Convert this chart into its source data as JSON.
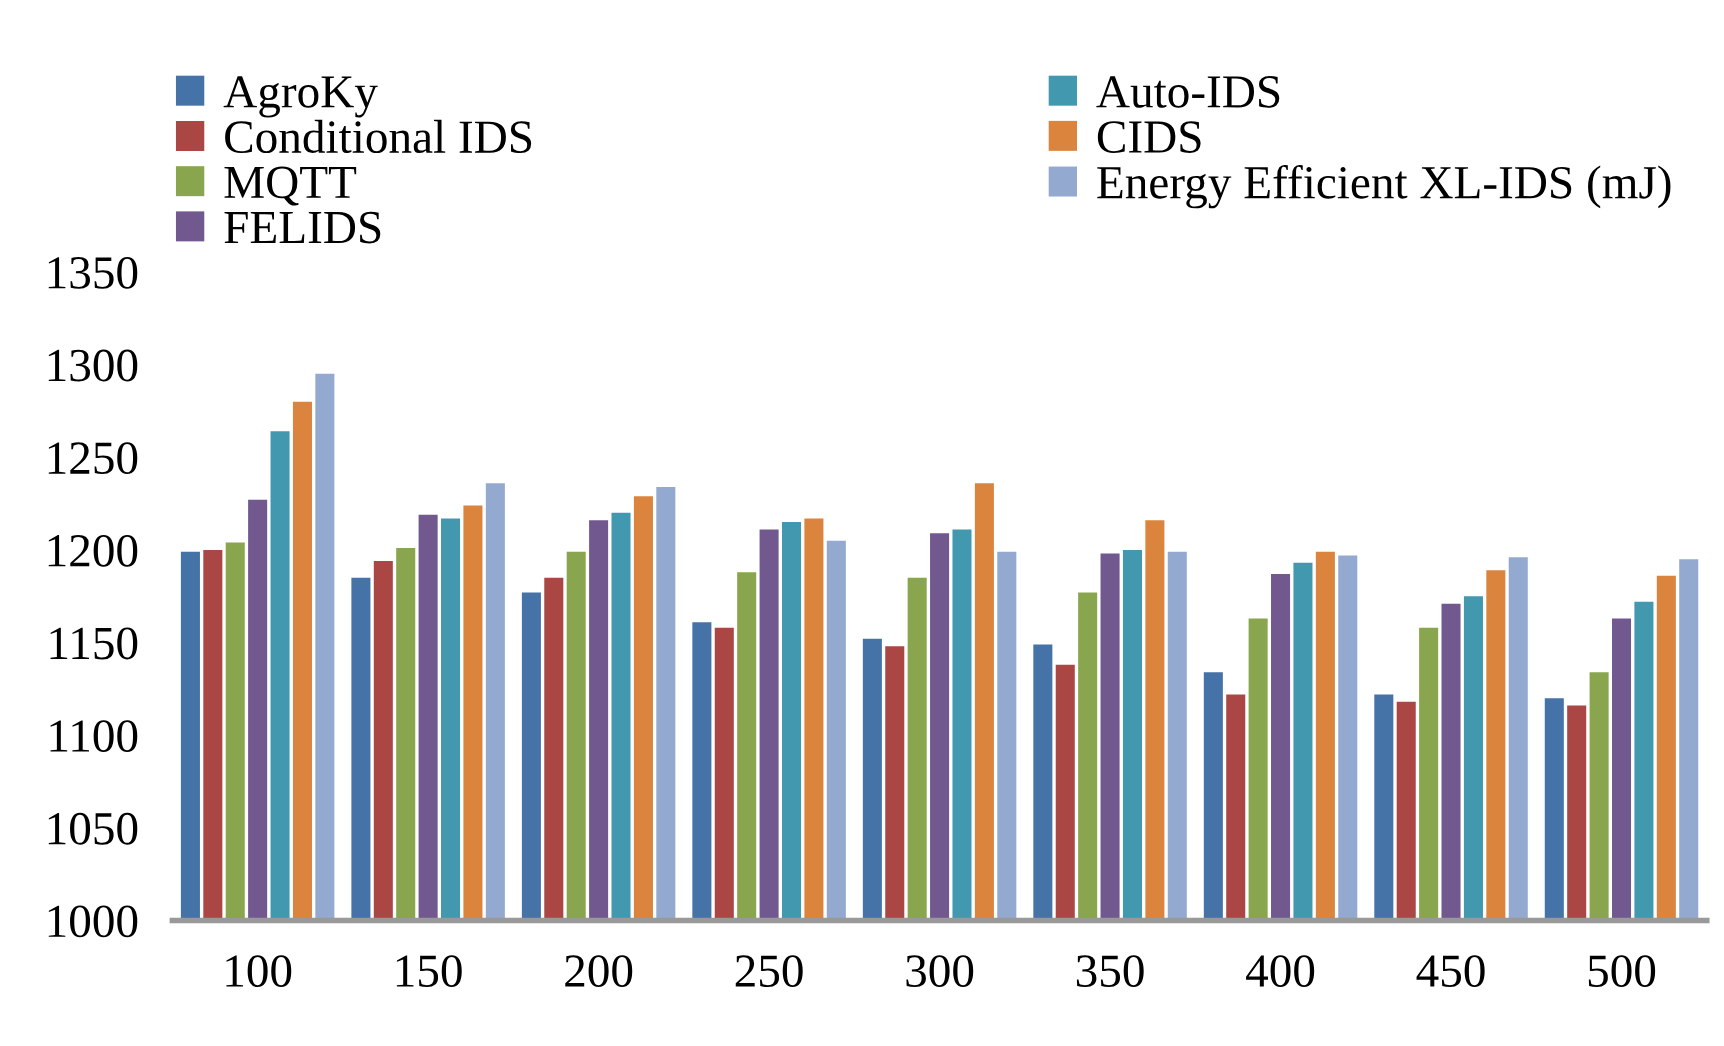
{
  "chart_data": {
    "type": "bar",
    "categories": [
      "100",
      "150",
      "200",
      "250",
      "300",
      "350",
      "400",
      "450",
      "500"
    ],
    "series": [
      {
        "name": "AgroKy",
        "color": "#4572a7",
        "values": [
          1199,
          1185,
          1177,
          1161,
          1152,
          1149,
          1134,
          1122,
          1120
        ]
      },
      {
        "name": "Conditional IDS",
        "color": "#aa4643",
        "values": [
          1200,
          1194,
          1185,
          1158,
          1148,
          1138,
          1122,
          1118,
          1116
        ]
      },
      {
        "name": "MQTT",
        "color": "#89a54e",
        "values": [
          1204,
          1201,
          1199,
          1188,
          1185,
          1177,
          1163,
          1158,
          1134
        ]
      },
      {
        "name": "FELIDS",
        "color": "#71588f",
        "values": [
          1227,
          1219,
          1216,
          1211,
          1209,
          1198,
          1187,
          1171,
          1163
        ]
      },
      {
        "name": "Auto-IDS",
        "color": "#4198af",
        "values": [
          1264,
          1217,
          1220,
          1215,
          1211,
          1200,
          1193,
          1175,
          1172
        ]
      },
      {
        "name": "CIDS",
        "color": "#db843d",
        "values": [
          1280,
          1224,
          1229,
          1217,
          1236,
          1216,
          1199,
          1189,
          1186
        ]
      },
      {
        "name": "Energy Efficient XL-IDS (mJ)",
        "color": "#93a9cf",
        "values": [
          1295,
          1236,
          1234,
          1205,
          1199,
          1199,
          1197,
          1196,
          1195
        ]
      }
    ],
    "ylim": [
      1000,
      1350
    ],
    "yticks": [
      1000,
      1050,
      1100,
      1150,
      1200,
      1250,
      1300,
      1350
    ],
    "grid": false,
    "legend": "top"
  }
}
